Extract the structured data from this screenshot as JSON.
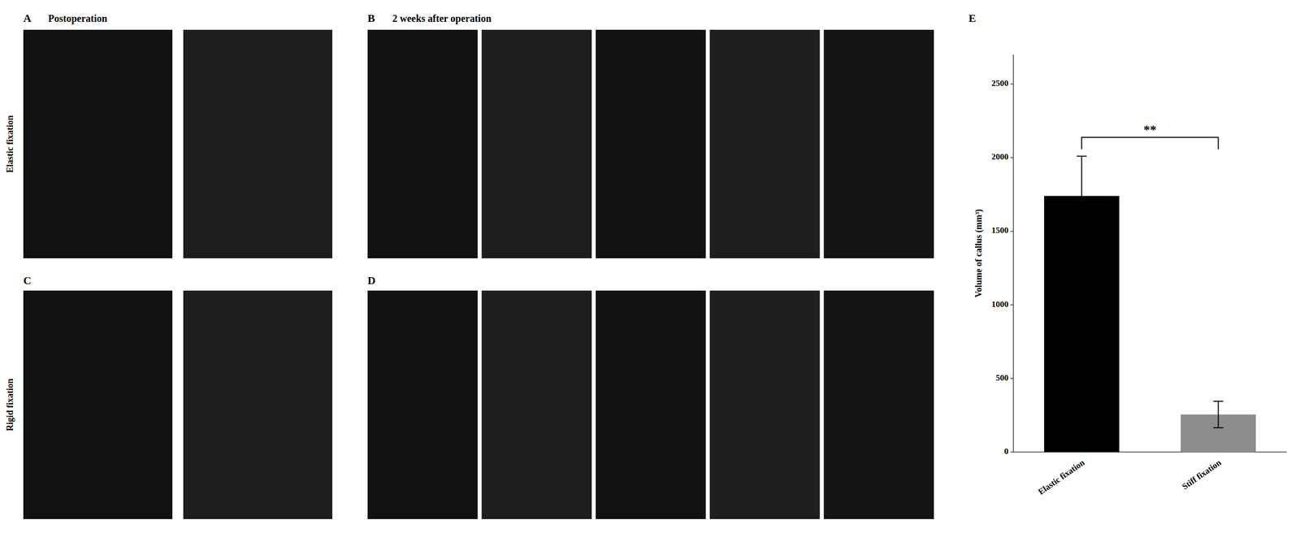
{
  "chart_data": {
    "type": "bar",
    "categories": [
      "Elastic fixation",
      "Stiff fixation"
    ],
    "values": [
      1740,
      255
    ],
    "errors": [
      270,
      90
    ],
    "colors": [
      "#000000",
      "#8c8c8c"
    ],
    "y_label": "Volume of callus (mm³)",
    "ylim": [
      0,
      2700
    ],
    "yticks": [
      0,
      500,
      1000,
      1500,
      2000,
      2500
    ],
    "grid": false,
    "annotations": {
      "significance": "**",
      "panel_labels": [
        "A",
        "B",
        "C",
        "D",
        "E"
      ],
      "panel_titles": [
        "Postoperation",
        "2 weeks after operation"
      ],
      "row_labels": [
        "Elastic fixation",
        "Rigid fixation"
      ]
    }
  }
}
